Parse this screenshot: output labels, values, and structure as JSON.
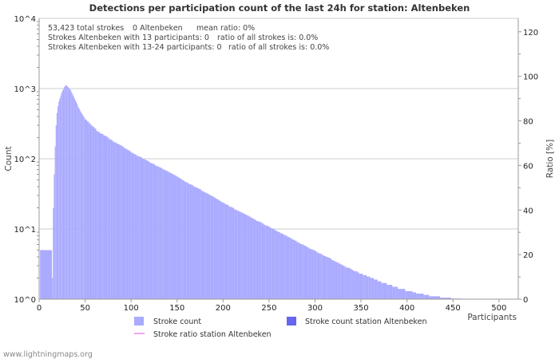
{
  "chart_data": {
    "type": "bar",
    "title": "Detections per participation count of the last 24h for station: Altenbeken",
    "xlabel": "Participants",
    "ylabel": "Count",
    "y2label": "Ratio [%]",
    "x_ticks": [
      "0",
      "50",
      "100",
      "150",
      "200",
      "250",
      "300",
      "350",
      "400",
      "450",
      "500"
    ],
    "y_ticks": [
      "10^0",
      "10^1",
      "10^2",
      "10^3",
      "10^4"
    ],
    "y2_ticks": [
      "0",
      "20",
      "40",
      "60",
      "80",
      "100",
      "120"
    ],
    "xlim": [
      0,
      521
    ],
    "ylim": [
      1,
      10000
    ],
    "y_scale": "log",
    "y2lim": [
      0,
      126
    ],
    "grid": true,
    "legend_position": "bottom",
    "info_lines": [
      [
        "53,423 total strokes",
        "0 Altenbeken",
        "mean ratio: 0%"
      ],
      [
        "Strokes Altenbeken with 13 participants: 0",
        "ratio of all strokes is: 0.0%"
      ],
      [
        "Strokes Altenbeken with 13-24 participants: 0",
        "ratio of all strokes is: 0.0%"
      ]
    ],
    "series": [
      {
        "name": "Stroke count",
        "color": "#aaaaff",
        "points": [
          [
            1,
            5
          ],
          [
            14,
            2
          ],
          [
            15,
            20
          ],
          [
            16,
            60
          ],
          [
            17,
            150
          ],
          [
            18,
            300
          ],
          [
            19,
            450
          ],
          [
            20,
            560
          ],
          [
            21,
            650
          ],
          [
            22,
            720
          ],
          [
            23,
            800
          ],
          [
            24,
            870
          ],
          [
            25,
            930
          ],
          [
            26,
            980
          ],
          [
            27,
            1050
          ],
          [
            28,
            1100
          ],
          [
            29,
            1120
          ],
          [
            30,
            1080
          ],
          [
            31,
            1050
          ],
          [
            32,
            1020
          ],
          [
            33,
            980
          ],
          [
            34,
            940
          ],
          [
            35,
            880
          ],
          [
            36,
            820
          ],
          [
            37,
            770
          ],
          [
            38,
            720
          ],
          [
            39,
            680
          ],
          [
            40,
            640
          ],
          [
            41,
            600
          ],
          [
            42,
            550
          ],
          [
            43,
            520
          ],
          [
            44,
            490
          ],
          [
            45,
            460
          ],
          [
            46,
            440
          ],
          [
            47,
            420
          ],
          [
            48,
            400
          ],
          [
            49,
            380
          ],
          [
            50,
            360
          ],
          [
            52,
            340
          ],
          [
            54,
            320
          ],
          [
            56,
            300
          ],
          [
            58,
            285
          ],
          [
            60,
            270
          ],
          [
            62,
            250
          ],
          [
            64,
            240
          ],
          [
            66,
            230
          ],
          [
            68,
            225
          ],
          [
            70,
            215
          ],
          [
            72,
            210
          ],
          [
            74,
            200
          ],
          [
            76,
            190
          ],
          [
            78,
            185
          ],
          [
            80,
            175
          ],
          [
            82,
            170
          ],
          [
            84,
            165
          ],
          [
            86,
            160
          ],
          [
            88,
            155
          ],
          [
            90,
            150
          ],
          [
            92,
            142
          ],
          [
            94,
            138
          ],
          [
            96,
            133
          ],
          [
            98,
            128
          ],
          [
            100,
            122
          ],
          [
            102,
            118
          ],
          [
            104,
            115
          ],
          [
            106,
            110
          ],
          [
            108,
            108
          ],
          [
            110,
            105
          ],
          [
            112,
            100
          ],
          [
            114,
            98
          ],
          [
            116,
            95
          ],
          [
            118,
            92
          ],
          [
            120,
            88
          ],
          [
            122,
            86
          ],
          [
            124,
            84
          ],
          [
            126,
            80
          ],
          [
            128,
            78
          ],
          [
            130,
            76
          ],
          [
            132,
            74
          ],
          [
            134,
            71
          ],
          [
            136,
            69
          ],
          [
            138,
            67
          ],
          [
            140,
            65
          ],
          [
            142,
            63
          ],
          [
            144,
            61
          ],
          [
            146,
            59
          ],
          [
            148,
            57
          ],
          [
            150,
            55
          ],
          [
            152,
            53
          ],
          [
            154,
            51
          ],
          [
            156,
            49
          ],
          [
            158,
            47
          ],
          [
            160,
            46
          ],
          [
            162,
            44
          ],
          [
            164,
            43
          ],
          [
            166,
            42
          ],
          [
            168,
            40
          ],
          [
            170,
            39
          ],
          [
            172,
            38
          ],
          [
            174,
            37
          ],
          [
            176,
            35
          ],
          [
            178,
            34
          ],
          [
            180,
            33
          ],
          [
            182,
            32
          ],
          [
            184,
            31
          ],
          [
            186,
            30
          ],
          [
            188,
            29
          ],
          [
            190,
            28
          ],
          [
            192,
            27
          ],
          [
            194,
            26
          ],
          [
            196,
            25
          ],
          [
            198,
            24
          ],
          [
            200,
            23.5
          ],
          [
            202,
            22.5
          ],
          [
            204,
            22
          ],
          [
            206,
            21
          ],
          [
            208,
            20.5
          ],
          [
            210,
            20
          ],
          [
            212,
            19
          ],
          [
            214,
            18.5
          ],
          [
            216,
            18
          ],
          [
            218,
            17.5
          ],
          [
            220,
            17
          ],
          [
            222,
            16.5
          ],
          [
            224,
            16
          ],
          [
            226,
            15.5
          ],
          [
            228,
            15
          ],
          [
            230,
            14.5
          ],
          [
            232,
            14
          ],
          [
            234,
            13.5
          ],
          [
            236,
            13
          ],
          [
            238,
            12.8
          ],
          [
            240,
            12.5
          ],
          [
            242,
            12
          ],
          [
            244,
            11.5
          ],
          [
            246,
            11.2
          ],
          [
            248,
            11
          ],
          [
            250,
            10.6
          ],
          [
            252,
            10.2
          ],
          [
            254,
            10
          ],
          [
            256,
            9.6
          ],
          [
            258,
            9.3
          ],
          [
            260,
            9
          ],
          [
            262,
            8.7
          ],
          [
            264,
            8.5
          ],
          [
            266,
            8.2
          ],
          [
            268,
            8
          ],
          [
            270,
            7.7
          ],
          [
            272,
            7.5
          ],
          [
            274,
            7.2
          ],
          [
            276,
            7
          ],
          [
            278,
            6.8
          ],
          [
            280,
            6.5
          ],
          [
            282,
            6.3
          ],
          [
            284,
            6.1
          ],
          [
            286,
            6
          ],
          [
            288,
            5.8
          ],
          [
            290,
            5.6
          ],
          [
            292,
            5.4
          ],
          [
            294,
            5.2
          ],
          [
            296,
            5.1
          ],
          [
            298,
            5
          ],
          [
            300,
            4.8
          ],
          [
            302,
            4.6
          ],
          [
            304,
            4.5
          ],
          [
            306,
            4.4
          ],
          [
            308,
            4.2
          ],
          [
            310,
            4.1
          ],
          [
            312,
            4
          ],
          [
            314,
            3.9
          ],
          [
            316,
            3.8
          ],
          [
            318,
            3.6
          ],
          [
            320,
            3.5
          ],
          [
            322,
            3.4
          ],
          [
            324,
            3.3
          ],
          [
            326,
            3.2
          ],
          [
            328,
            3.1
          ],
          [
            330,
            3
          ],
          [
            332,
            2.9
          ],
          [
            334,
            2.8
          ],
          [
            336,
            2.8
          ],
          [
            338,
            2.7
          ],
          [
            340,
            2.6
          ],
          [
            342,
            2.5
          ],
          [
            344,
            2.5
          ],
          [
            346,
            2.4
          ],
          [
            348,
            2.3
          ],
          [
            350,
            2.3
          ],
          [
            352,
            2.2
          ],
          [
            354,
            2.2
          ],
          [
            356,
            2.1
          ],
          [
            358,
            2.1
          ],
          [
            360,
            2
          ],
          [
            362,
            2
          ],
          [
            364,
            1.9
          ],
          [
            366,
            1.9
          ],
          [
            368,
            1.8
          ],
          [
            370,
            1.8
          ],
          [
            372,
            1.7
          ],
          [
            374,
            1.7
          ],
          [
            376,
            1.7
          ],
          [
            378,
            1.6
          ],
          [
            380,
            1.6
          ],
          [
            382,
            1.6
          ],
          [
            384,
            1.5
          ],
          [
            386,
            1.5
          ],
          [
            388,
            1.5
          ],
          [
            390,
            1.4
          ],
          [
            392,
            1.4
          ],
          [
            394,
            1.4
          ],
          [
            396,
            1.4
          ],
          [
            398,
            1.3
          ],
          [
            400,
            1.3
          ],
          [
            402,
            1.3
          ],
          [
            404,
            1.3
          ],
          [
            406,
            1.25
          ],
          [
            408,
            1.25
          ],
          [
            410,
            1.2
          ],
          [
            412,
            1.2
          ],
          [
            414,
            1.2
          ],
          [
            416,
            1.2
          ],
          [
            418,
            1.15
          ],
          [
            420,
            1.15
          ],
          [
            424,
            1.1
          ],
          [
            428,
            1.1
          ],
          [
            432,
            1.1
          ],
          [
            436,
            1.05
          ],
          [
            440,
            1.05
          ],
          [
            444,
            1.05
          ],
          [
            448,
            1.02
          ],
          [
            452,
            1.02
          ],
          [
            456,
            1.02
          ],
          [
            460,
            1
          ],
          [
            470,
            1
          ],
          [
            480,
            1
          ],
          [
            490,
            1
          ],
          [
            500,
            1
          ],
          [
            510,
            1
          ],
          [
            520,
            1
          ]
        ]
      },
      {
        "name": "Stroke count station Altenbeken",
        "color": "#6666ee",
        "points": []
      },
      {
        "name": "Stroke ratio station Altenbeken",
        "color": "#ee88ee",
        "points": []
      }
    ]
  },
  "footer": "www.lightningmaps.org"
}
